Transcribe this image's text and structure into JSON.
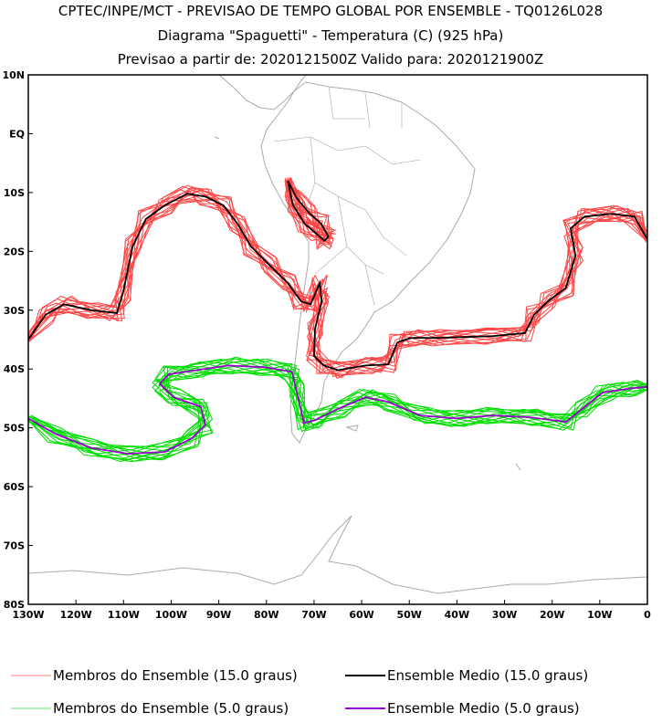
{
  "chart_data": {
    "type": "line",
    "title": "CPTEC/INPE/MCT - PREVISAO DE TEMPO GLOBAL POR ENSEMBLE - TQ0126L028",
    "subtitle": "Diagrama \"Spaguetti\" - Temperatura (C) (925 hPa)",
    "subtitle2": "Previsao a partir de: 2020121500Z  Valido para: 2020121900Z",
    "xlim": [
      -130,
      0
    ],
    "ylim": [
      -80,
      10
    ],
    "x_ticks": [
      {
        "value": -130,
        "label": "130W"
      },
      {
        "value": -120,
        "label": "120W"
      },
      {
        "value": -110,
        "label": "110W"
      },
      {
        "value": -100,
        "label": "100W"
      },
      {
        "value": -90,
        "label": "90W"
      },
      {
        "value": -80,
        "label": "80W"
      },
      {
        "value": -70,
        "label": "70W"
      },
      {
        "value": -60,
        "label": "60W"
      },
      {
        "value": -50,
        "label": "50W"
      },
      {
        "value": -40,
        "label": "40W"
      },
      {
        "value": -30,
        "label": "30W"
      },
      {
        "value": -20,
        "label": "20W"
      },
      {
        "value": -10,
        "label": "10W"
      },
      {
        "value": 0,
        "label": "0"
      }
    ],
    "y_ticks": [
      {
        "value": 10,
        "label": "10N"
      },
      {
        "value": 0,
        "label": "EQ"
      },
      {
        "value": -10,
        "label": "10S"
      },
      {
        "value": -20,
        "label": "20S"
      },
      {
        "value": -30,
        "label": "30S"
      },
      {
        "value": -40,
        "label": "40S"
      },
      {
        "value": -50,
        "label": "50S"
      },
      {
        "value": -60,
        "label": "60S"
      },
      {
        "value": -70,
        "label": "70S"
      },
      {
        "value": -80,
        "label": "80S"
      }
    ],
    "series": [
      {
        "name": "Ensemble Medio (15.0 graus)",
        "color": "#000000",
        "kind": "mean",
        "segments": [
          [
            [
              -130,
              -35
            ],
            [
              -126.4,
              -30.8
            ],
            [
              -122.5,
              -29
            ],
            [
              -116.8,
              -30
            ],
            [
              -111.4,
              -30.5
            ],
            [
              -110.1,
              -27
            ],
            [
              -108.1,
              -19.2
            ],
            [
              -105.3,
              -14.5
            ],
            [
              -101.4,
              -12.2
            ],
            [
              -96.6,
              -10.2
            ],
            [
              -92.8,
              -10.7
            ],
            [
              -89,
              -12.2
            ],
            [
              -86.1,
              -15.3
            ],
            [
              -83.2,
              -19.2
            ],
            [
              -79.4,
              -22.3
            ],
            [
              -75.5,
              -25.4
            ],
            [
              -72.7,
              -28.5
            ],
            [
              -70.7,
              -29
            ],
            [
              -68.8,
              -25.4
            ],
            [
              -68.4,
              -28.5
            ],
            [
              -69.8,
              -33.2
            ],
            [
              -70,
              -37.8
            ],
            [
              -67.9,
              -39.4
            ],
            [
              -65,
              -40.2
            ],
            [
              -59.2,
              -39.4
            ],
            [
              -54.4,
              -39.2
            ],
            [
              -52.5,
              -35.5
            ],
            [
              -49.7,
              -34.7
            ],
            [
              -43.9,
              -34.7
            ],
            [
              -32.4,
              -34.4
            ],
            [
              -25.7,
              -33.9
            ],
            [
              -23.8,
              -30.8
            ],
            [
              -20.9,
              -28.5
            ],
            [
              -17.1,
              -26.2
            ],
            [
              -15.1,
              -20.7
            ],
            [
              -16.1,
              -16.1
            ],
            [
              -13.2,
              -14.1
            ],
            [
              -7.5,
              -13.6
            ],
            [
              -2.7,
              -14.1
            ],
            [
              0,
              -18
            ]
          ],
          [
            [
              -75.5,
              -8
            ],
            [
              -73.6,
              -11
            ],
            [
              -71,
              -13.5
            ],
            [
              -68.5,
              -15.3
            ],
            [
              -67,
              -17.5
            ],
            [
              -67.8,
              -18.2
            ],
            [
              -69.5,
              -17
            ],
            [
              -72,
              -15.3
            ],
            [
              -74.5,
              -12
            ],
            [
              -75.5,
              -8
            ]
          ]
        ]
      },
      {
        "name": "Ensemble Medio (5.0 graus)",
        "color": "#9900cc",
        "kind": "mean",
        "segments": [
          [
            [
              -130,
              -48.4
            ],
            [
              -124.4,
              -51
            ],
            [
              -116.8,
              -53.4
            ],
            [
              -109.1,
              -54.4
            ],
            [
              -101.4,
              -54.1
            ],
            [
              -95.7,
              -51.8
            ],
            [
              -92.8,
              -49.5
            ],
            [
              -93.8,
              -46.4
            ],
            [
              -99.5,
              -44.8
            ],
            [
              -102.4,
              -42.5
            ],
            [
              -100.5,
              -40.9
            ],
            [
              -94.7,
              -40.2
            ],
            [
              -88,
              -39.4
            ],
            [
              -80.3,
              -39.7
            ],
            [
              -74.6,
              -40.5
            ],
            [
              -73.6,
              -44
            ],
            [
              -72.1,
              -49.2
            ],
            [
              -69.8,
              -48.7
            ],
            [
              -65,
              -46.8
            ],
            [
              -59.2,
              -44.8
            ],
            [
              -54.4,
              -45.6
            ],
            [
              -47.7,
              -47.9
            ],
            [
              -40.1,
              -48.4
            ],
            [
              -32.4,
              -47.9
            ],
            [
              -24.7,
              -48.2
            ],
            [
              -17.1,
              -49
            ],
            [
              -14.2,
              -47.1
            ],
            [
              -9.4,
              -44
            ],
            [
              -3.6,
              -43.3
            ],
            [
              0,
              -43
            ]
          ]
        ]
      }
    ],
    "members": [
      {
        "name": "Membros do Ensemble (15.0 graus)",
        "color": "#ff4444",
        "based_on": 0,
        "count": 14
      },
      {
        "name": "Membros do Ensemble (5.0 graus)",
        "color": "#00dd00",
        "based_on": 1,
        "count": 14
      }
    ],
    "legend": [
      {
        "label": "Membros do Ensemble (15.0 graus)",
        "color": "#ff8080"
      },
      {
        "label": "Ensemble Medio (15.0 graus)",
        "color": "#000000"
      },
      {
        "label": "Membros do Ensemble (5.0 graus)",
        "color": "#66dd66"
      },
      {
        "label": "Ensemble Medio (5.0 graus)",
        "color": "#9900cc"
      }
    ],
    "legend_position": "bottom"
  }
}
